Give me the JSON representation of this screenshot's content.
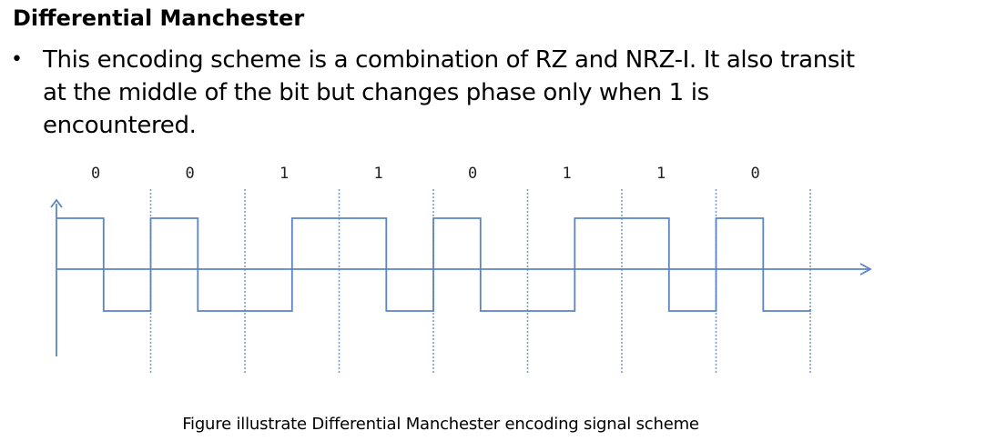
{
  "slide": {
    "title": "Differential Manchester",
    "bullet_lines": [
      "This encoding scheme is a combination of RZ and NRZ-I. It also transit",
      "at the middle of the bit but changes phase only when 1 is",
      "encountered."
    ],
    "caption": "Figure illustrate Differential Manchester encoding signal scheme"
  },
  "diagram": {
    "bits": [
      "0",
      "0",
      "1",
      "1",
      "0",
      "1",
      "1",
      "0"
    ],
    "first_half_levels": [
      "high",
      "high",
      "low",
      "high",
      "high",
      "low",
      "high",
      "high"
    ],
    "colors": {
      "signal": "#5b84c4",
      "axis": "#5b84c4",
      "boundary": "#7d9ccd",
      "label": "#222222"
    }
  }
}
